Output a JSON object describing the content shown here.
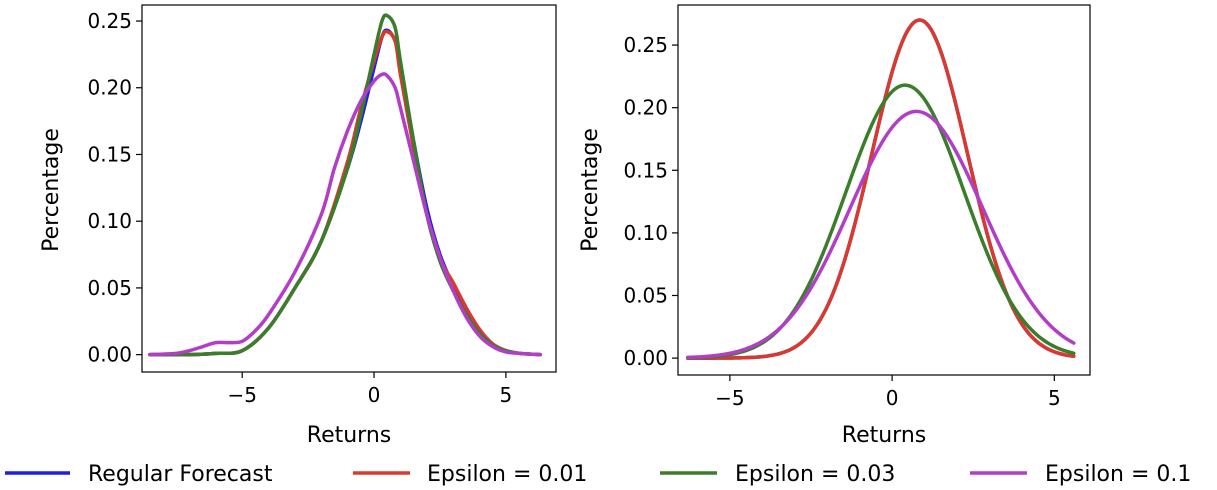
{
  "figure": {
    "legend": {
      "placement": "bottom-center",
      "entries": [
        {
          "label": "Regular Forecast",
          "color": "#1f1fe0"
        },
        {
          "label": "Epsilon = 0.01",
          "color": "#d93a2e"
        },
        {
          "label": "Epsilon = 0.03",
          "color": "#3a7d2a"
        },
        {
          "label": "Epsilon = 0.1",
          "color": "#b23ec8"
        }
      ]
    }
  },
  "chart_data": [
    {
      "type": "line",
      "title": "",
      "xlabel": "Returns",
      "ylabel": "Percentage",
      "xlim": [
        -8.8,
        6.9
      ],
      "ylim": [
        -0.013,
        0.262
      ],
      "xticks": [
        -5,
        0,
        5
      ],
      "xtick_labels": [
        "−5",
        "0",
        "5"
      ],
      "yticks": [
        0.0,
        0.05,
        0.1,
        0.15,
        0.2,
        0.25
      ],
      "ytick_labels": [
        "0.00",
        "0.05",
        "0.10",
        "0.15",
        "0.20",
        "0.25"
      ],
      "grid": false,
      "series": [
        {
          "name": "Regular Forecast",
          "color": "#1f1fe0",
          "x": [
            -8.5,
            -7,
            -6,
            -5,
            -4,
            -3,
            -2,
            -1,
            -0.5,
            0,
            0.3,
            0.5,
            0.8,
            1,
            1.5,
            2,
            2.5,
            3,
            3.5,
            4,
            4.5,
            5,
            5.5,
            6.3
          ],
          "y": [
            0.0,
            0.0,
            0.001,
            0.003,
            0.02,
            0.05,
            0.085,
            0.14,
            0.175,
            0.215,
            0.238,
            0.243,
            0.235,
            0.215,
            0.16,
            0.11,
            0.075,
            0.052,
            0.033,
            0.018,
            0.008,
            0.003,
            0.001,
            0.0
          ]
        },
        {
          "name": "Epsilon = 0.01",
          "color": "#d93a2e",
          "x": [
            -8.5,
            -7,
            -6,
            -5,
            -4,
            -3,
            -2,
            -1,
            -0.5,
            0,
            0.3,
            0.5,
            0.8,
            1,
            1.5,
            2,
            2.5,
            3,
            3.5,
            4,
            4.5,
            5,
            5.5,
            6.3
          ],
          "y": [
            0.0,
            0.0,
            0.001,
            0.003,
            0.02,
            0.05,
            0.085,
            0.145,
            0.185,
            0.22,
            0.238,
            0.242,
            0.235,
            0.21,
            0.155,
            0.105,
            0.072,
            0.054,
            0.035,
            0.019,
            0.008,
            0.003,
            0.001,
            0.0
          ]
        },
        {
          "name": "Epsilon = 0.03",
          "color": "#3a7d2a",
          "x": [
            -8.5,
            -7,
            -6,
            -5,
            -4,
            -3,
            -2,
            -1,
            -0.5,
            0,
            0.3,
            0.5,
            0.8,
            1,
            1.5,
            2,
            2.5,
            3,
            3.5,
            4,
            4.5,
            5,
            5.5,
            6.3
          ],
          "y": [
            0.0,
            0.0,
            0.001,
            0.003,
            0.02,
            0.05,
            0.085,
            0.14,
            0.18,
            0.225,
            0.25,
            0.254,
            0.245,
            0.22,
            0.16,
            0.105,
            0.07,
            0.048,
            0.03,
            0.016,
            0.007,
            0.003,
            0.001,
            0.0
          ]
        },
        {
          "name": "Epsilon = 0.1",
          "color": "#b23ec8",
          "x": [
            -8.5,
            -7.5,
            -7,
            -6.5,
            -6,
            -5.5,
            -5,
            -4.5,
            -4,
            -3,
            -2,
            -1.5,
            -1,
            -0.5,
            0,
            0.3,
            0.5,
            0.8,
            1,
            1.5,
            2,
            2.5,
            3,
            3.5,
            4,
            4.5,
            5,
            5.5,
            6.3
          ],
          "y": [
            0.0,
            0.001,
            0.003,
            0.006,
            0.009,
            0.009,
            0.01,
            0.018,
            0.03,
            0.062,
            0.105,
            0.14,
            0.168,
            0.19,
            0.205,
            0.21,
            0.209,
            0.2,
            0.185,
            0.145,
            0.105,
            0.073,
            0.048,
            0.028,
            0.014,
            0.006,
            0.002,
            0.001,
            0.0
          ]
        }
      ]
    },
    {
      "type": "line",
      "title": "",
      "xlabel": "Returns",
      "ylabel": "Percentage",
      "xlim": [
        -6.6,
        6.1
      ],
      "ylim": [
        -0.0135,
        0.282
      ],
      "xticks": [
        -5,
        0,
        5
      ],
      "xtick_labels": [
        "−5",
        "0",
        "5"
      ],
      "yticks": [
        0.0,
        0.05,
        0.1,
        0.15,
        0.2,
        0.25
      ],
      "ytick_labels": [
        "0.00",
        "0.05",
        "0.10",
        "0.15",
        "0.20",
        "0.25"
      ],
      "grid": false,
      "series": [
        {
          "name": "Regular Forecast",
          "color": "#1f1fe0",
          "dist": "normal",
          "mean": 0.85,
          "peak": 0.27,
          "sd": 1.47,
          "x_range": [
            -6.3,
            5.6
          ]
        },
        {
          "name": "Epsilon = 0.01",
          "color": "#d93a2e",
          "dist": "normal",
          "mean": 0.85,
          "peak": 0.27,
          "sd": 1.47,
          "x_range": [
            -6.3,
            5.6
          ]
        },
        {
          "name": "Epsilon = 0.03",
          "color": "#3a7d2a",
          "dist": "normal",
          "mean": 0.4,
          "peak": 0.218,
          "sd": 1.83,
          "x_range": [
            -6.3,
            5.6
          ]
        },
        {
          "name": "Epsilon = 0.1",
          "color": "#b23ec8",
          "dist": "normal",
          "mean": 0.75,
          "peak": 0.197,
          "sd": 2.05,
          "x_range": [
            -6.3,
            5.6
          ]
        }
      ]
    }
  ]
}
